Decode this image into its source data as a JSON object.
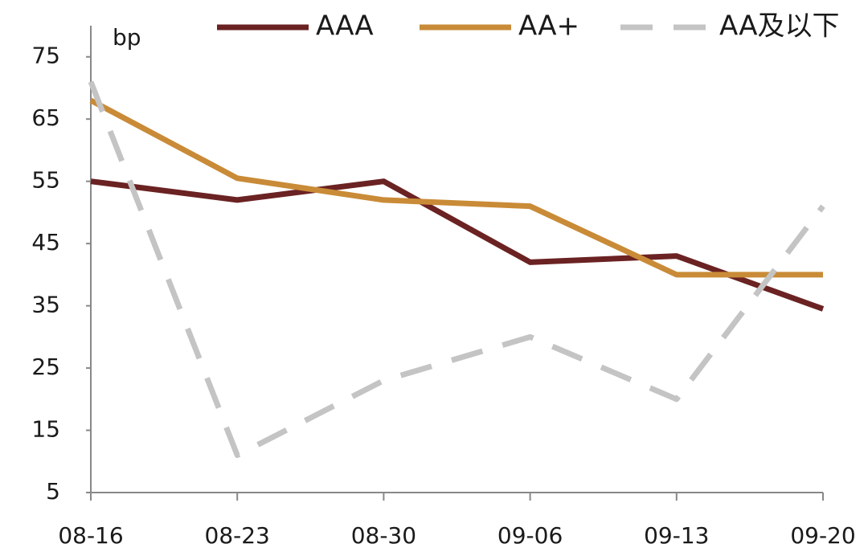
{
  "chart_data": {
    "type": "line",
    "y_label": "bp",
    "categories": [
      "08-16",
      "08-23",
      "08-30",
      "09-06",
      "09-13",
      "09-20"
    ],
    "series": [
      {
        "name": "AAA",
        "color": "#6b2222",
        "dashed": false,
        "values": [
          55,
          52,
          55,
          42,
          43,
          34.5
        ]
      },
      {
        "name": "AA+",
        "color": "#c98b37",
        "dashed": false,
        "values": [
          68,
          55.5,
          52,
          51,
          40,
          40
        ]
      },
      {
        "name": "AA及以下",
        "color": "#c4c4c4",
        "dashed": true,
        "values": [
          71,
          11,
          23,
          30,
          20,
          51
        ]
      }
    ],
    "ylim": [
      5,
      80
    ],
    "yticks": [
      5,
      15,
      25,
      35,
      45,
      55,
      65,
      75
    ],
    "grid": false
  }
}
